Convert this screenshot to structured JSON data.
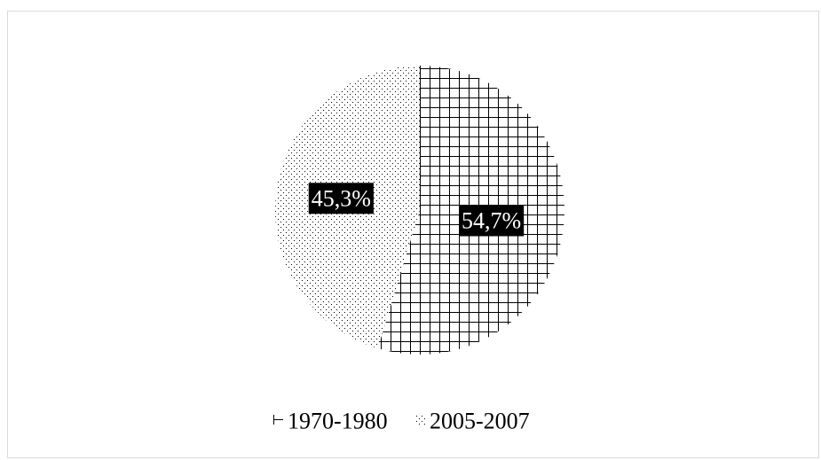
{
  "chart_data": {
    "type": "pie",
    "title": "",
    "slices": [
      {
        "label": "1970-1980",
        "value": 54.7,
        "value_label": "54,7%",
        "pattern": "grid"
      },
      {
        "label": "2005-2007",
        "value": 45.3,
        "value_label": "45,3%",
        "pattern": "dots"
      }
    ],
    "legend_position": "bottom",
    "colors": {
      "stroke": "#000000",
      "label_bg": "#000000",
      "label_text": "#ffffff"
    }
  }
}
